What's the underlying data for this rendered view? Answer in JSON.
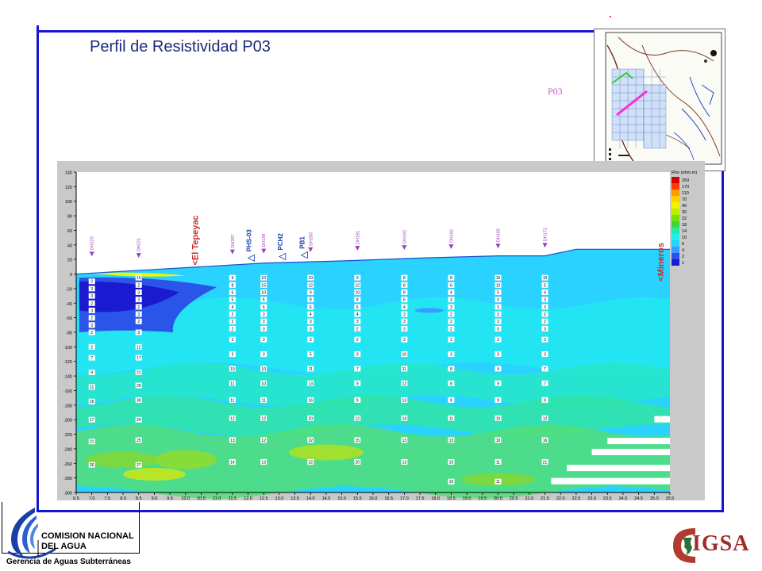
{
  "title": "Perfil de Resistividad P03",
  "inset_label": "P03",
  "organization": {
    "line1": "COMISION NACIONAL",
    "line2": "DEL AGUA",
    "subtitle": "Gerencia de Aguas Subterráneas"
  },
  "partner_logo": "IGSA",
  "colors": {
    "frame": "#1515d4",
    "title": "#1c2b7a",
    "inset_label": "#d24fd0",
    "marker": "#9b3fbf",
    "site_label": "#cc2a2a"
  },
  "chart_data": {
    "type": "heatmap",
    "title": "",
    "xlabel": "",
    "ylabel": "",
    "xlim": [
      6.5,
      25.5
    ],
    "ylim": [
      -300,
      140
    ],
    "x_ticks": [
      "6.5",
      "7.0",
      "7.5",
      "8.0",
      "8.5",
      "9.0",
      "9.5",
      "10.0",
      "10.5",
      "11.0",
      "11.5",
      "12.0",
      "12.5",
      "13.0",
      "13.5",
      "14.0",
      "14.5",
      "15.0",
      "15.5",
      "16.0",
      "16.5",
      "17.0",
      "17.5",
      "18.0",
      "18.5",
      "19.0",
      "19.5",
      "20.0",
      "20.5",
      "21.0",
      "21.5",
      "22.0",
      "22.5",
      "23.0",
      "23.5",
      "24.0",
      "24.5",
      "25.0",
      "25.5"
    ],
    "y_ticks": [
      "140",
      "120",
      "100",
      "80",
      "60",
      "40",
      "20",
      "0",
      "-20",
      "-40",
      "-60",
      "-80",
      "-100",
      "-120",
      "-140",
      "-160",
      "-180",
      "-200",
      "-220",
      "-240",
      "-260",
      "-280",
      "-300"
    ],
    "legend": {
      "title": "Rho (ohm.m)",
      "placement": "right",
      "levels": [
        "250",
        "170",
        "110",
        "70",
        "40",
        "30",
        "22",
        "18",
        "14",
        "10",
        "6",
        "4",
        "2",
        "1"
      ],
      "colors": [
        "#d40000",
        "#ff3c00",
        "#ff9a00",
        "#ffd200",
        "#f2f500",
        "#b8f000",
        "#7ae000",
        "#3ed63a",
        "#27e8a5",
        "#22f0e8",
        "#2ad2ff",
        "#3a9cff",
        "#2a55e8",
        "#1a1ad0"
      ]
    },
    "surface_profile": {
      "x": [
        6.5,
        8.5,
        10.5,
        12.5,
        15.0,
        17.5,
        20.0,
        21.5,
        22.5,
        25.5
      ],
      "y": [
        0,
        5,
        10,
        15,
        18,
        22,
        25,
        25,
        34,
        34
      ]
    },
    "site_labels": [
      "El Tepeyac",
      "Mineros"
    ],
    "sondeos": [
      {
        "name": "DH220",
        "x": 7.0,
        "label_y": 22,
        "values": [
          {
            "d": -10,
            "v": "2"
          },
          {
            "d": -20,
            "v": "3"
          },
          {
            "d": -30,
            "v": "3"
          },
          {
            "d": -40,
            "v": "2"
          },
          {
            "d": -50,
            "v": "3"
          },
          {
            "d": -60,
            "v": "2"
          },
          {
            "d": -70,
            "v": "3"
          },
          {
            "d": -80,
            "v": "2"
          },
          {
            "d": -100,
            "v": "2"
          },
          {
            "d": -115,
            "v": "7"
          },
          {
            "d": -135,
            "v": "9"
          },
          {
            "d": -155,
            "v": "11"
          },
          {
            "d": -175,
            "v": "16"
          },
          {
            "d": -200,
            "v": "17"
          },
          {
            "d": -230,
            "v": "21"
          },
          {
            "d": -262,
            "v": "26"
          }
        ]
      },
      {
        "name": "DH221",
        "x": 8.5,
        "label_y": 20,
        "values": [
          {
            "d": -5,
            "v": "10"
          },
          {
            "d": -15,
            "v": "2"
          },
          {
            "d": -25,
            "v": "3"
          },
          {
            "d": -35,
            "v": "3"
          },
          {
            "d": -45,
            "v": "2"
          },
          {
            "d": -55,
            "v": "3"
          },
          {
            "d": -65,
            "v": "2"
          },
          {
            "d": -80,
            "v": "3"
          },
          {
            "d": -100,
            "v": "12"
          },
          {
            "d": -115,
            "v": "17"
          },
          {
            "d": -135,
            "v": "21"
          },
          {
            "d": -153,
            "v": "26"
          },
          {
            "d": -173,
            "v": "30"
          },
          {
            "d": -200,
            "v": "24"
          },
          {
            "d": -228,
            "v": "25"
          },
          {
            "d": -262,
            "v": "27"
          }
        ]
      },
      {
        "name": "DH207",
        "x": 11.5,
        "label_y": 25,
        "values": [
          {
            "d": -5,
            "v": "9"
          },
          {
            "d": -15,
            "v": "8"
          },
          {
            "d": -25,
            "v": "6"
          },
          {
            "d": -35,
            "v": "5"
          },
          {
            "d": -45,
            "v": "4"
          },
          {
            "d": -55,
            "v": "2"
          },
          {
            "d": -65,
            "v": "2"
          },
          {
            "d": -75,
            "v": "2"
          },
          {
            "d": -90,
            "v": "3"
          },
          {
            "d": -110,
            "v": "3"
          },
          {
            "d": -130,
            "v": "10"
          },
          {
            "d": -150,
            "v": "11"
          },
          {
            "d": -173,
            "v": "11"
          },
          {
            "d": -198,
            "v": "12"
          },
          {
            "d": -228,
            "v": "13"
          },
          {
            "d": -258,
            "v": "14"
          }
        ]
      },
      {
        "name": "DH199",
        "x": 12.5,
        "label_y": 26,
        "values": [
          {
            "d": -5,
            "v": "10"
          },
          {
            "d": -15,
            "v": "15"
          },
          {
            "d": -25,
            "v": "10"
          },
          {
            "d": -35,
            "v": "6"
          },
          {
            "d": -45,
            "v": "6"
          },
          {
            "d": -55,
            "v": "3"
          },
          {
            "d": -65,
            "v": "3"
          },
          {
            "d": -75,
            "v": "3"
          },
          {
            "d": -90,
            "v": "3"
          },
          {
            "d": -110,
            "v": "3"
          },
          {
            "d": -130,
            "v": "10"
          },
          {
            "d": -150,
            "v": "10"
          },
          {
            "d": -173,
            "v": "11"
          },
          {
            "d": -198,
            "v": "12"
          },
          {
            "d": -228,
            "v": "12"
          },
          {
            "d": -258,
            "v": "13"
          }
        ]
      },
      {
        "name": "DH200",
        "x": 14.0,
        "label_y": 28,
        "values": [
          {
            "d": -5,
            "v": "10"
          },
          {
            "d": -15,
            "v": "12"
          },
          {
            "d": -25,
            "v": "9"
          },
          {
            "d": -35,
            "v": "8"
          },
          {
            "d": -45,
            "v": "6"
          },
          {
            "d": -55,
            "v": "4"
          },
          {
            "d": -65,
            "v": "3"
          },
          {
            "d": -75,
            "v": "3"
          },
          {
            "d": -90,
            "v": "3"
          },
          {
            "d": -110,
            "v": "5"
          },
          {
            "d": -130,
            "v": "11"
          },
          {
            "d": -150,
            "v": "13"
          },
          {
            "d": -173,
            "v": "16"
          },
          {
            "d": -198,
            "v": "20"
          },
          {
            "d": -228,
            "v": "22"
          },
          {
            "d": -258,
            "v": "22"
          }
        ]
      },
      {
        "name": "DH191",
        "x": 15.5,
        "label_y": 30,
        "values": [
          {
            "d": -5,
            "v": "9"
          },
          {
            "d": -15,
            "v": "12"
          },
          {
            "d": -25,
            "v": "10"
          },
          {
            "d": -35,
            "v": "8"
          },
          {
            "d": -45,
            "v": "6"
          },
          {
            "d": -55,
            "v": "4"
          },
          {
            "d": -65,
            "v": "3"
          },
          {
            "d": -75,
            "v": "2"
          },
          {
            "d": -90,
            "v": "2"
          },
          {
            "d": -110,
            "v": "3"
          },
          {
            "d": -130,
            "v": "7"
          },
          {
            "d": -150,
            "v": "9"
          },
          {
            "d": -173,
            "v": "9"
          },
          {
            "d": -198,
            "v": "12"
          },
          {
            "d": -228,
            "v": "15"
          },
          {
            "d": -258,
            "v": "20"
          }
        ]
      },
      {
        "name": "DH192",
        "x": 17.0,
        "label_y": 31,
        "values": [
          {
            "d": -5,
            "v": "8"
          },
          {
            "d": -15,
            "v": "8"
          },
          {
            "d": -25,
            "v": "8"
          },
          {
            "d": -35,
            "v": "6"
          },
          {
            "d": -45,
            "v": "4"
          },
          {
            "d": -55,
            "v": "3"
          },
          {
            "d": -65,
            "v": "3"
          },
          {
            "d": -75,
            "v": "3"
          },
          {
            "d": -90,
            "v": "3"
          },
          {
            "d": -110,
            "v": "10"
          },
          {
            "d": -130,
            "v": "11"
          },
          {
            "d": -150,
            "v": "12"
          },
          {
            "d": -173,
            "v": "13"
          },
          {
            "d": -198,
            "v": "14"
          },
          {
            "d": -228,
            "v": "13"
          },
          {
            "d": -258,
            "v": "13"
          }
        ]
      },
      {
        "name": "DH182",
        "x": 18.5,
        "label_y": 32,
        "values": [
          {
            "d": -5,
            "v": "8"
          },
          {
            "d": -15,
            "v": "6"
          },
          {
            "d": -25,
            "v": "4"
          },
          {
            "d": -35,
            "v": "3"
          },
          {
            "d": -45,
            "v": "3"
          },
          {
            "d": -55,
            "v": "2"
          },
          {
            "d": -65,
            "v": "2"
          },
          {
            "d": -75,
            "v": "2"
          },
          {
            "d": -90,
            "v": "2"
          },
          {
            "d": -110,
            "v": "3"
          },
          {
            "d": -130,
            "v": "8"
          },
          {
            "d": -150,
            "v": "8"
          },
          {
            "d": -173,
            "v": "9"
          },
          {
            "d": -198,
            "v": "11"
          },
          {
            "d": -228,
            "v": "13"
          },
          {
            "d": -258,
            "v": "15"
          },
          {
            "d": -285,
            "v": "16"
          }
        ]
      },
      {
        "name": "DH183",
        "x": 20.0,
        "label_y": 33,
        "values": [
          {
            "d": -5,
            "v": "16"
          },
          {
            "d": -15,
            "v": "10"
          },
          {
            "d": -25,
            "v": "5"
          },
          {
            "d": -35,
            "v": "4"
          },
          {
            "d": -45,
            "v": "3"
          },
          {
            "d": -55,
            "v": "3"
          },
          {
            "d": -65,
            "v": "3"
          },
          {
            "d": -75,
            "v": "3"
          },
          {
            "d": -90,
            "v": "3"
          },
          {
            "d": -110,
            "v": "3"
          },
          {
            "d": -130,
            "v": "4"
          },
          {
            "d": -150,
            "v": "9"
          },
          {
            "d": -173,
            "v": "9"
          },
          {
            "d": -198,
            "v": "10"
          },
          {
            "d": -228,
            "v": "10"
          },
          {
            "d": -258,
            "v": "11"
          },
          {
            "d": -285,
            "v": "11"
          }
        ]
      },
      {
        "name": "DH172",
        "x": 21.5,
        "label_y": 34,
        "values": [
          {
            "d": -5,
            "v": "10"
          },
          {
            "d": -15,
            "v": "5"
          },
          {
            "d": -25,
            "v": "4"
          },
          {
            "d": -35,
            "v": "3"
          },
          {
            "d": -45,
            "v": "3"
          },
          {
            "d": -55,
            "v": "2"
          },
          {
            "d": -65,
            "v": "2"
          },
          {
            "d": -75,
            "v": "3"
          },
          {
            "d": -90,
            "v": "3"
          },
          {
            "d": -110,
            "v": "3"
          },
          {
            "d": -130,
            "v": "7"
          },
          {
            "d": -150,
            "v": "7"
          },
          {
            "d": -173,
            "v": "9"
          },
          {
            "d": -198,
            "v": "12"
          },
          {
            "d": -228,
            "v": "16"
          },
          {
            "d": -258,
            "v": "21"
          }
        ]
      }
    ],
    "section_markers": [
      "PHS-03",
      "PCH2",
      "PB1"
    ]
  }
}
